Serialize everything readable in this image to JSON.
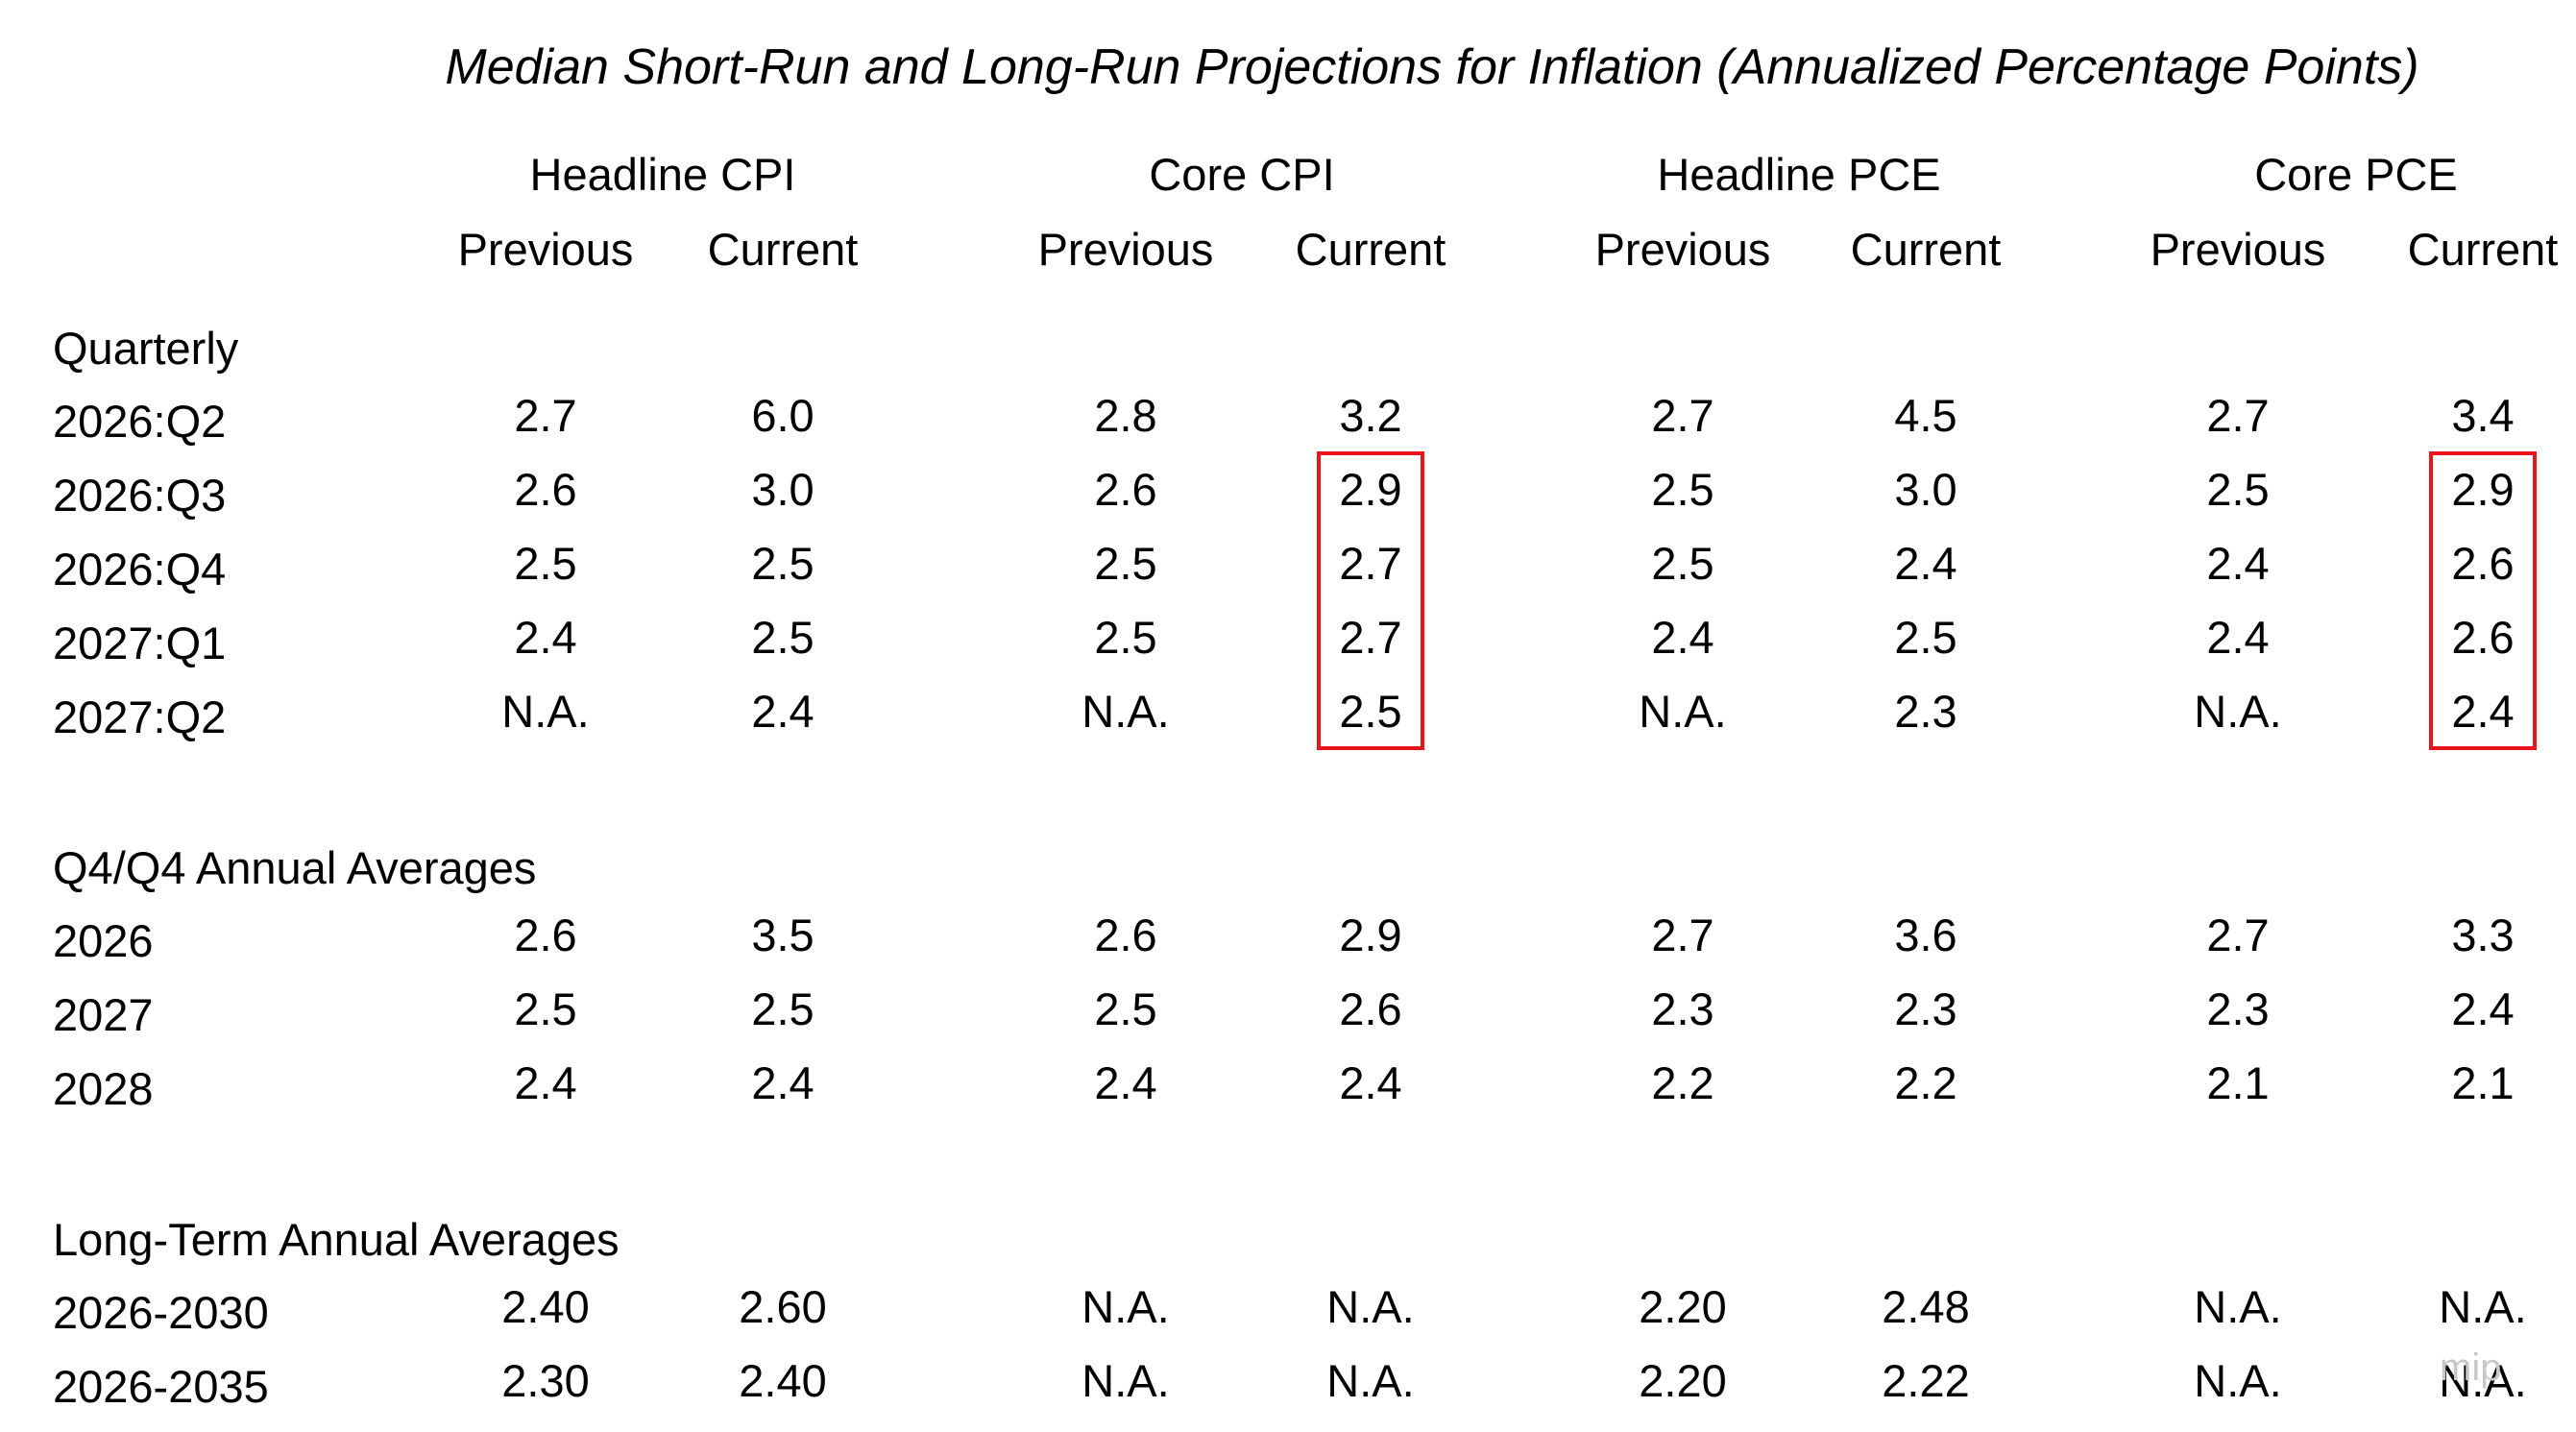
{
  "title": "Median Short-Run and Long-Run Projections for Inflation (Annualized Percentage Points)",
  "groups": [
    {
      "label": "Headline CPI",
      "sub": [
        "Previous",
        "Current"
      ]
    },
    {
      "label": "Core CPI",
      "sub": [
        "Previous",
        "Current"
      ]
    },
    {
      "label": "Headline PCE",
      "sub": [
        "Previous",
        "Current"
      ]
    },
    {
      "label": "Core PCE",
      "sub": [
        "Previous",
        "Current"
      ]
    }
  ],
  "sections": [
    {
      "label": "Quarterly",
      "rows": [
        {
          "label": "2026:Q2",
          "values": [
            "2.7",
            "6.0",
            "2.8",
            "3.2",
            "2.7",
            "4.5",
            "2.7",
            "3.4"
          ]
        },
        {
          "label": "2026:Q3",
          "values": [
            "2.6",
            "3.0",
            "2.6",
            "2.9",
            "2.5",
            "3.0",
            "2.5",
            "2.9"
          ]
        },
        {
          "label": "2026:Q4",
          "values": [
            "2.5",
            "2.5",
            "2.5",
            "2.7",
            "2.5",
            "2.4",
            "2.4",
            "2.6"
          ]
        },
        {
          "label": "2027:Q1",
          "values": [
            "2.4",
            "2.5",
            "2.5",
            "2.7",
            "2.4",
            "2.5",
            "2.4",
            "2.6"
          ]
        },
        {
          "label": "2027:Q2",
          "values": [
            "N.A.",
            "2.4",
            "N.A.",
            "2.5",
            "N.A.",
            "2.3",
            "N.A.",
            "2.4"
          ]
        }
      ]
    },
    {
      "label": "Q4/Q4 Annual Averages",
      "rows": [
        {
          "label": "2026",
          "values": [
            "2.6",
            "3.5",
            "2.6",
            "2.9",
            "2.7",
            "3.6",
            "2.7",
            "3.3"
          ]
        },
        {
          "label": "2027",
          "values": [
            "2.5",
            "2.5",
            "2.5",
            "2.6",
            "2.3",
            "2.3",
            "2.3",
            "2.4"
          ]
        },
        {
          "label": "2028",
          "values": [
            "2.4",
            "2.4",
            "2.4",
            "2.4",
            "2.2",
            "2.2",
            "2.1",
            "2.1"
          ]
        }
      ]
    },
    {
      "label": "Long-Term Annual Averages",
      "rows": [
        {
          "label": "2026-2030",
          "values": [
            "2.40",
            "2.60",
            "N.A.",
            "N.A.",
            "2.20",
            "2.48",
            "N.A.",
            "N.A."
          ]
        },
        {
          "label": "2026-2035",
          "values": [
            "2.30",
            "2.40",
            "N.A.",
            "N.A.",
            "2.20",
            "2.22",
            "N.A.",
            "N.A."
          ]
        }
      ]
    }
  ],
  "highlight_color": "#e8161c",
  "watermark": "mip"
}
